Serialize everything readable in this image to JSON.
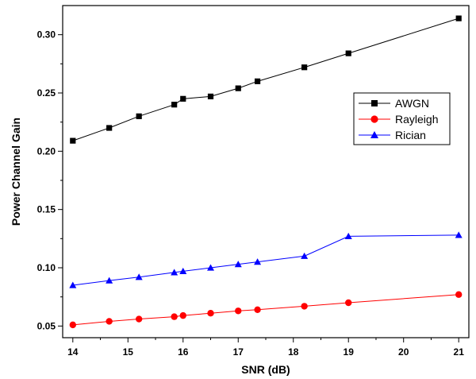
{
  "chart_data": {
    "type": "line",
    "xlabel": "SNR (dB)",
    "ylabel": "Power Channel Gain",
    "xlim": [
      14,
      21
    ],
    "ylim": [
      0.04,
      0.325
    ],
    "xticks": [
      14,
      15,
      16,
      17,
      18,
      19,
      20,
      21
    ],
    "yticks": [
      "0.05",
      "0.10",
      "0.15",
      "0.20",
      "0.25",
      "0.30"
    ],
    "legend_position": "right-middle",
    "grid": false,
    "series": [
      {
        "name": "AWGN",
        "color": "#000000",
        "marker": "square",
        "x": [
          14,
          14.66,
          15.2,
          15.84,
          16,
          16.5,
          17,
          17.35,
          18.2,
          19,
          21
        ],
        "y": [
          0.209,
          0.22,
          0.23,
          0.24,
          0.245,
          0.247,
          0.254,
          0.26,
          0.272,
          0.284,
          0.314
        ]
      },
      {
        "name": "Rayleigh",
        "color": "#ff0000",
        "marker": "circle",
        "x": [
          14,
          14.66,
          15.2,
          15.84,
          16,
          16.5,
          17,
          17.35,
          18.2,
          19,
          21
        ],
        "y": [
          0.051,
          0.054,
          0.056,
          0.058,
          0.059,
          0.061,
          0.063,
          0.064,
          0.067,
          0.07,
          0.077
        ]
      },
      {
        "name": "Rician",
        "color": "#0000ff",
        "marker": "triangle",
        "x": [
          14,
          14.66,
          15.2,
          15.84,
          16,
          16.5,
          17,
          17.35,
          18.2,
          19,
          21
        ],
        "y": [
          0.085,
          0.089,
          0.092,
          0.096,
          0.097,
          0.1,
          0.103,
          0.105,
          0.11,
          0.127,
          0.128
        ]
      }
    ]
  }
}
